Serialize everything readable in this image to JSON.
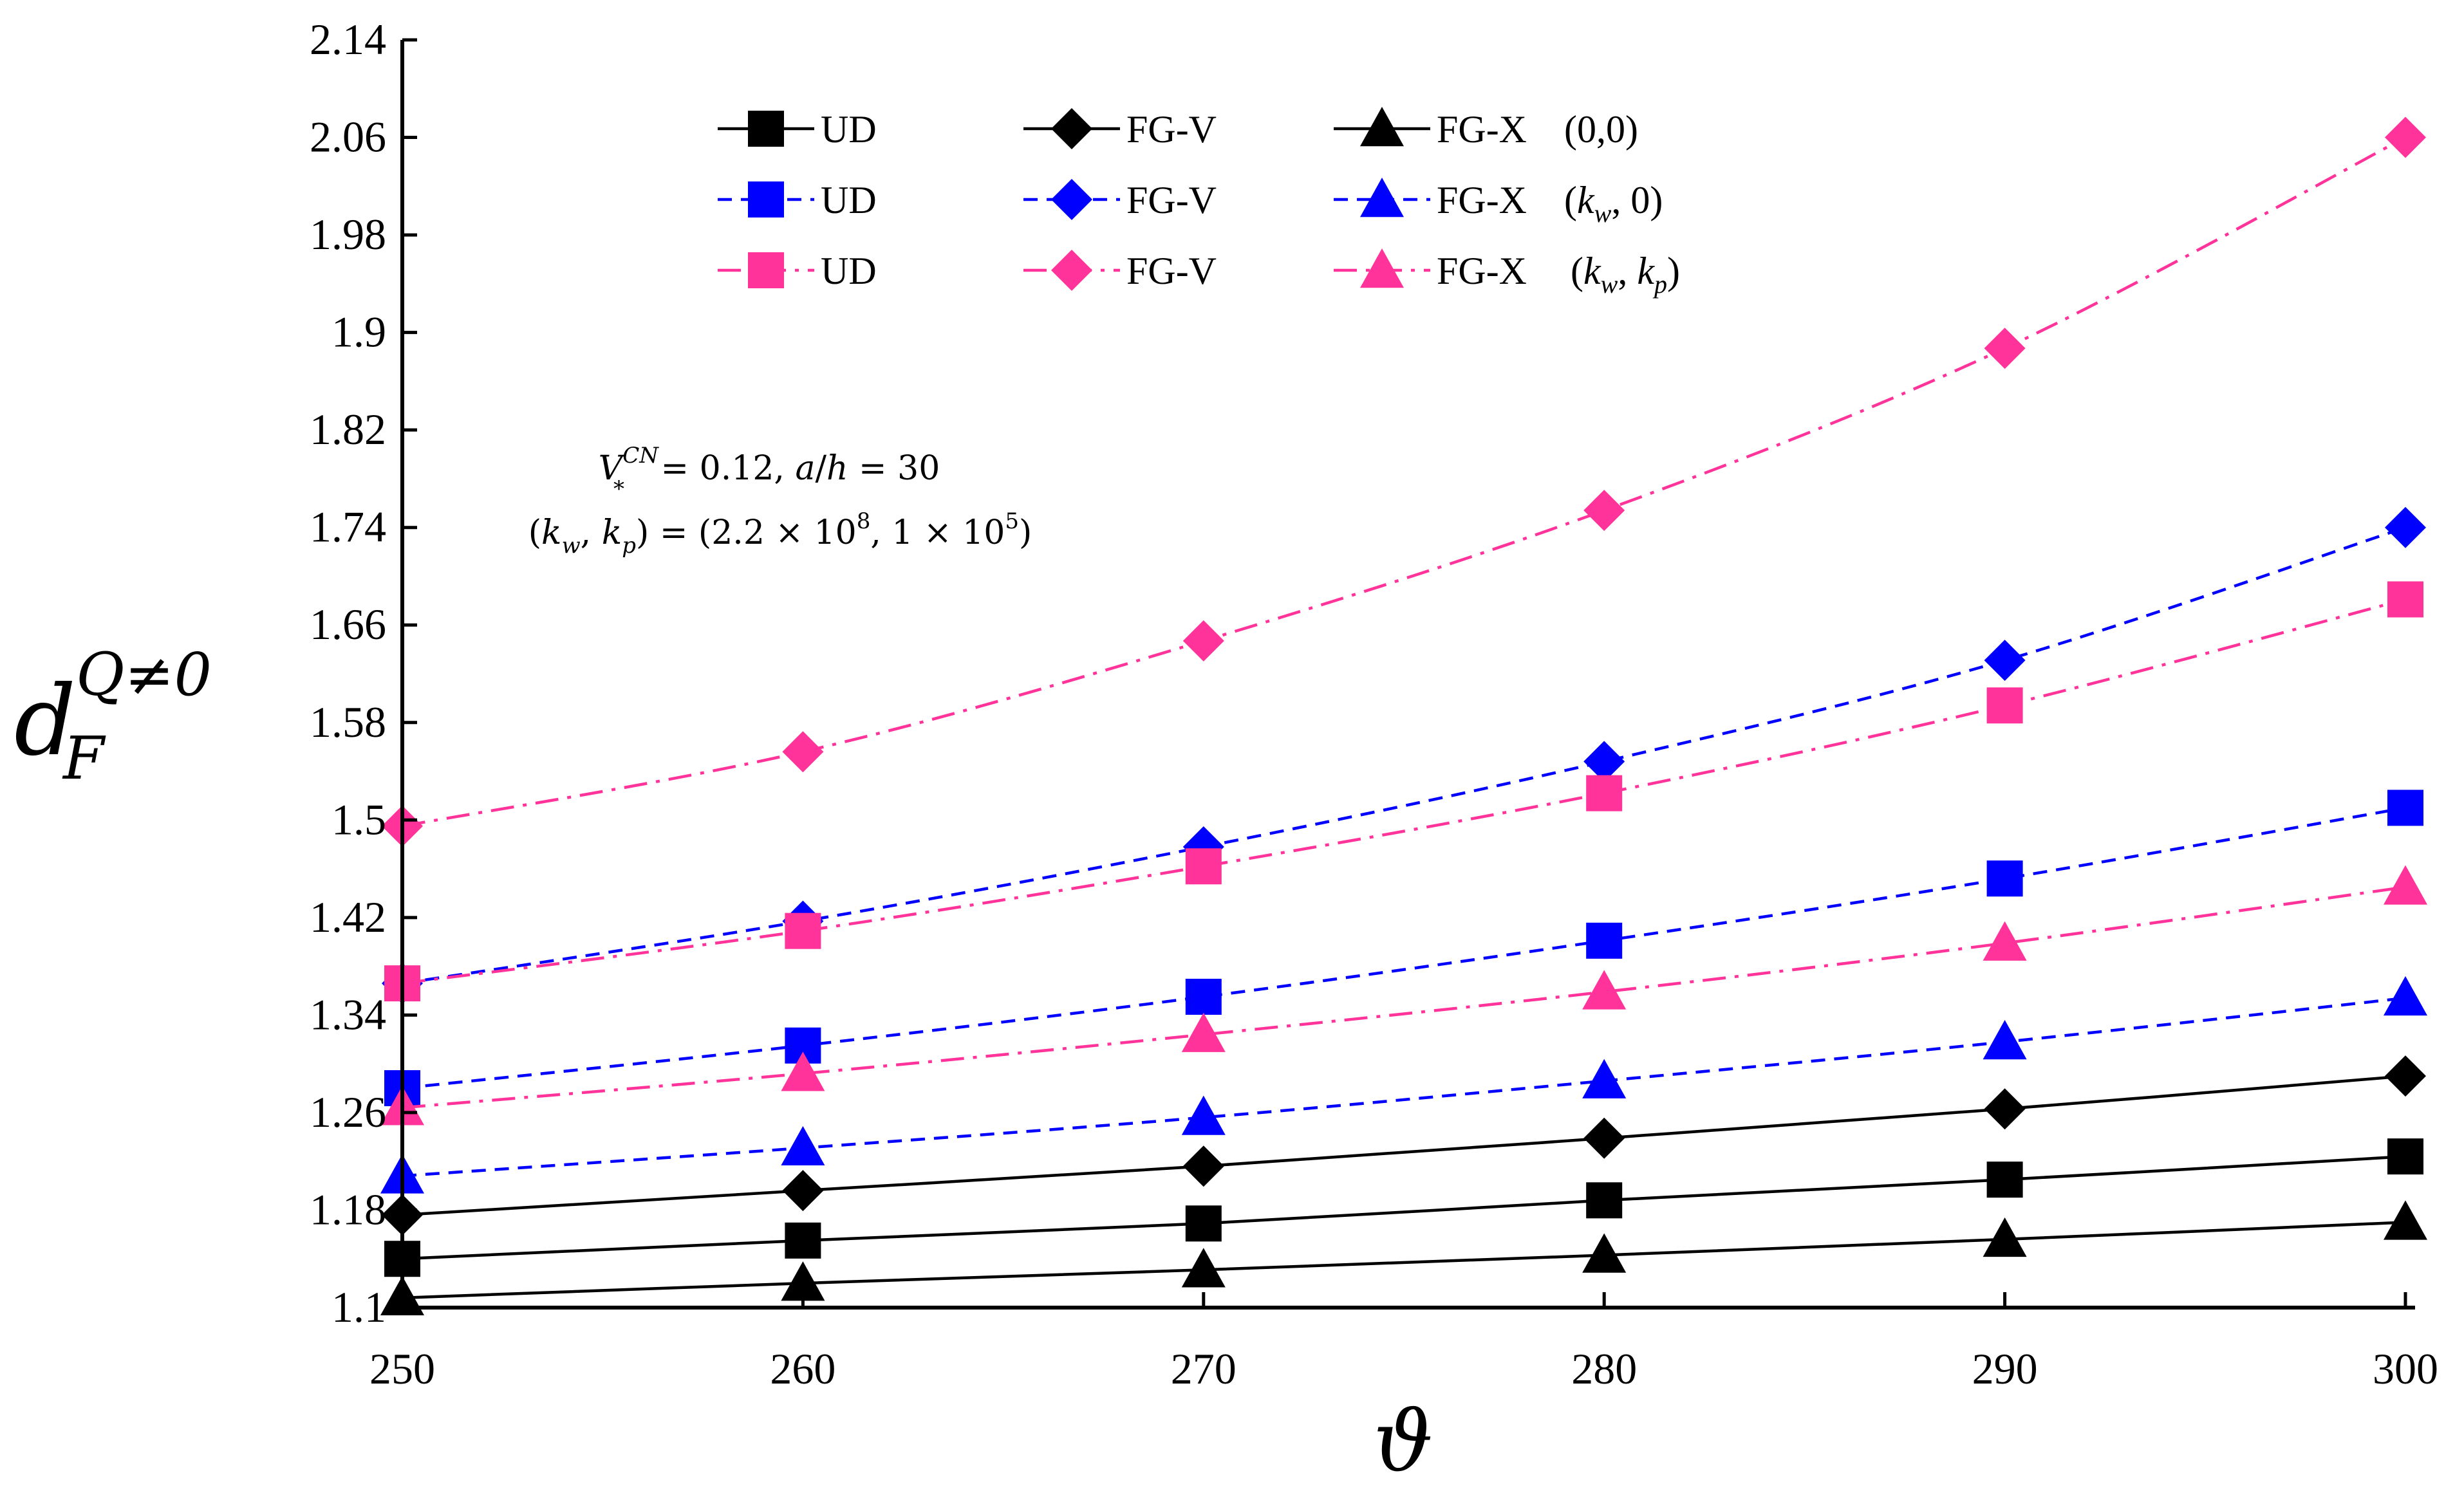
{
  "chart_data": {
    "type": "line",
    "title": "",
    "xlabel": "ϑ",
    "ylabel_main": "d",
    "ylabel_sup": "Q≠0",
    "ylabel_sub": "F",
    "x": [
      250,
      260,
      270,
      280,
      290,
      300
    ],
    "xlim": [
      250,
      300
    ],
    "ylim": [
      1.1,
      2.14
    ],
    "xticks": [
      "250",
      "260",
      "270",
      "280",
      "290",
      "300"
    ],
    "yticks": [
      "1.1",
      "1.18",
      "1.26",
      "1.34",
      "1.42",
      "1.5",
      "1.58",
      "1.66",
      "1.74",
      "1.82",
      "1.9",
      "1.98",
      "2.06",
      "2.14"
    ],
    "grid": false,
    "legend_position": "top-center",
    "legend_groups": [
      {
        "label": "(0,0)"
      },
      {
        "label": "(k_w, 0)"
      },
      {
        "label": "(k_w, k_p)"
      }
    ],
    "annotation_line1": "V*^CN = 0.12, a/h = 30",
    "annotation_line2": "(k_w, k_p) = (2.2 × 10^8, 1 × 10^5)",
    "series": [
      {
        "name": "UD",
        "group": "(0,0)",
        "color": "#000000",
        "dash": "solid",
        "marker": "square",
        "values": [
          1.14,
          1.155,
          1.169,
          1.188,
          1.205,
          1.224
        ]
      },
      {
        "name": "FG-V",
        "group": "(0,0)",
        "color": "#000000",
        "dash": "solid",
        "marker": "diamond",
        "values": [
          1.176,
          1.196,
          1.216,
          1.239,
          1.263,
          1.29
        ]
      },
      {
        "name": "FG-X",
        "group": "(0,0)",
        "color": "#000000",
        "dash": "solid",
        "marker": "triangle",
        "values": [
          1.108,
          1.12,
          1.131,
          1.143,
          1.156,
          1.17
        ]
      },
      {
        "name": "UD",
        "group": "(k_w, 0)",
        "color": "#0000FF",
        "dash": "dash",
        "marker": "square",
        "values": [
          1.28,
          1.315,
          1.355,
          1.401,
          1.452,
          1.51
        ]
      },
      {
        "name": "FG-V",
        "group": "(k_w, 0)",
        "color": "#0000FF",
        "dash": "dash",
        "marker": "diamond",
        "values": [
          1.366,
          1.417,
          1.478,
          1.548,
          1.631,
          1.74
        ]
      },
      {
        "name": "FG-X",
        "group": "(k_w, 0)",
        "color": "#0000FF",
        "dash": "dash",
        "marker": "triangle",
        "values": [
          1.208,
          1.231,
          1.256,
          1.286,
          1.318,
          1.354
        ]
      },
      {
        "name": "UD",
        "group": "(k_w, k_p)",
        "color": "#FF3399",
        "dash": "dashdot",
        "marker": "square",
        "values": [
          1.366,
          1.409,
          1.462,
          1.522,
          1.594,
          1.681
        ]
      },
      {
        "name": "FG-V",
        "group": "(k_w, k_p)",
        "color": "#FF3399",
        "dash": "dashdot",
        "marker": "diamond",
        "values": [
          1.495,
          1.556,
          1.647,
          1.754,
          1.887,
          2.06
        ]
      },
      {
        "name": "FG-X",
        "group": "(k_w, k_p)",
        "color": "#FF3399",
        "dash": "dashdot",
        "marker": "triangle",
        "values": [
          1.264,
          1.292,
          1.324,
          1.359,
          1.399,
          1.445
        ]
      }
    ]
  }
}
